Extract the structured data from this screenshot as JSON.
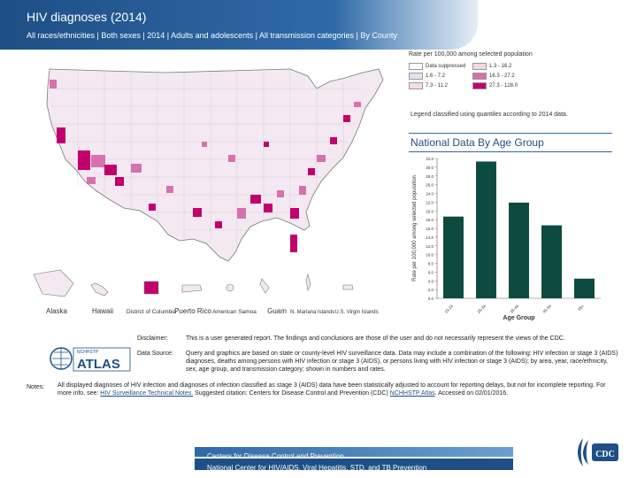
{
  "header": {
    "title": "HIV diagnoses (2014)",
    "subtitle": "All races/ethnicities | Both sexes | 2014 | Adults and adolescents | All transmission categories | By County"
  },
  "legend": {
    "title": "Rate per 100,000 among selected population",
    "items": [
      {
        "label": "Data suppressed",
        "color": "#ffffff"
      },
      {
        "label": "1.3 - 16.2",
        "color": "#f2d7e8"
      },
      {
        "label": "1.6 - 7.2",
        "color": "#e8e0ef"
      },
      {
        "label": "16.3 - 27.2",
        "color": "#d870ae"
      },
      {
        "label": "7.3 - 11.2",
        "color": "#f7dcec"
      },
      {
        "label": "27.3 - 128.0",
        "color": "#c2006d"
      }
    ],
    "note": "Legend classified using quantiles according to 2014 data."
  },
  "territories": [
    "Alaska",
    "Hawaii",
    "District of Columbia",
    "Puerto Rico",
    "American Samoa",
    "Guam",
    "N. Mariana Islands",
    "U.S. Virgin Islands"
  ],
  "chart_data": {
    "type": "bar",
    "title": "National Data By Age Group",
    "categories": [
      "13-24",
      "25-34",
      "35-44",
      "45-54",
      "55+"
    ],
    "values": [
      18.7,
      31.3,
      21.9,
      16.7,
      4.5
    ],
    "xlabel": "Age Group",
    "ylabel": "Rate per 100,000 among selected population",
    "ylim": [
      0,
      32
    ],
    "yticks": [
      "0.0",
      "2.0",
      "4.0",
      "6.0",
      "8.0",
      "10.0",
      "12.0",
      "14.0",
      "16.0",
      "18.0",
      "20.0",
      "22.0",
      "24.0",
      "26.0",
      "28.0",
      "30.0",
      "32.0"
    ],
    "bar_color": "#0d4a3f"
  },
  "logo": {
    "small": "NCHHSTP",
    "big": "ATLAS"
  },
  "info": {
    "disclaimer_label": "Disclaimer:",
    "disclaimer_text": "This is a user generated report. The findings and conclusions are those of the user and do not necessarily represent the views of the CDC.",
    "datasource_label": "Data Source:",
    "datasource_text": "Query and graphics are based on state or county-level HIV surveillance data. Data may include a combination of the following: HIV infection or stage 3 (AIDS) diagnoses, deaths among persons with HIV infection or stage 3 (AIDS), or persons living with HIV infection or stage 3 (AIDS); by area, year, race/ethnicity, sex, age group, and transmission category; shown in numbers and rates.",
    "notes_label": "Notes:",
    "notes_text_1": "All displayed diagnoses of HIV infection and diagnoses of infection classified as stage 3 (AIDS) data have been statistically adjusted to account for reporting delays, but not for incomplete reporting. For more info, see:",
    "notes_link_1": "HIV Surveillance Technical Notes.",
    "notes_text_2": "Suggested citation: Centers for Disease Control and Prevention (CDC)",
    "notes_link_2": "NCHHSTP Atlas",
    "notes_text_3": ". Accessed on 02/01/2016."
  },
  "footer": {
    "line1": "Centers for Disease Control and Prevention",
    "line2": "National Center for HIV/AIDS, Viral Hepatitis, STD, and TB Prevention",
    "cdc": "CDC"
  }
}
